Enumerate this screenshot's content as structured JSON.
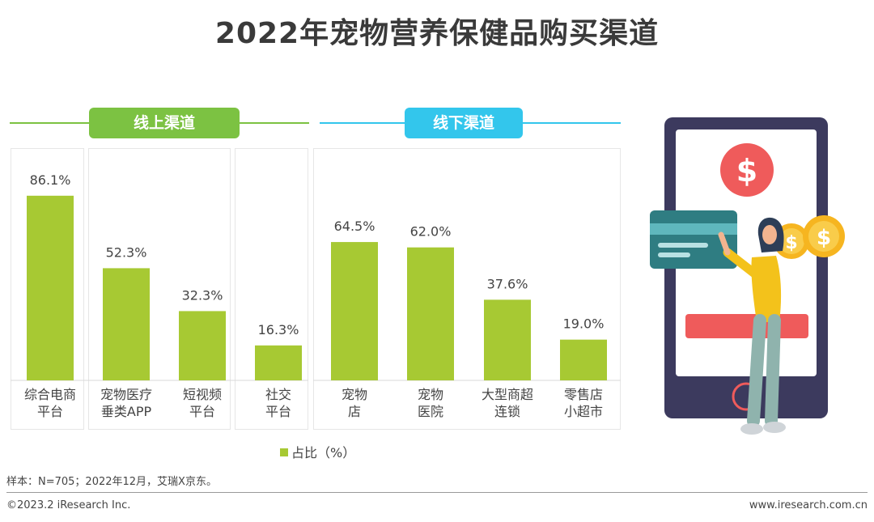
{
  "title": "2022年宠物营养保健品购买渠道",
  "sections": [
    {
      "label": "线上渠道",
      "color": "#7cc242"
    },
    {
      "label": "线下渠道",
      "color": "#33c6ec"
    }
  ],
  "legend": {
    "label": "占比（%）"
  },
  "note": "样本：N=705；2022年12月，艾瑞X京东。",
  "footer": {
    "copyright": "©2023.2 iResearch Inc.",
    "website": "www.iresearch.com.cn"
  },
  "colors": {
    "bar": "#a7c933",
    "online": "#7cc242",
    "offline": "#33c6ec"
  },
  "chart_data": {
    "type": "bar",
    "categories": [
      [
        "综合电商",
        "平台"
      ],
      [
        "宠物医疗",
        "垂类APP"
      ],
      [
        "短视频",
        "平台"
      ],
      [
        "社交",
        "平台"
      ],
      [
        "宠物",
        "店"
      ],
      [
        "宠物",
        "医院"
      ],
      [
        "大型商超",
        "连锁"
      ],
      [
        "零售店",
        "小超市"
      ]
    ],
    "values": [
      86.1,
      52.3,
      32.3,
      16.3,
      64.5,
      62.0,
      37.6,
      19.0
    ],
    "value_labels": [
      "86.1%",
      "52.3%",
      "32.3%",
      "16.3%",
      "64.5%",
      "62.0%",
      "37.6%",
      "19.0%"
    ],
    "groups": [
      "线上渠道",
      "线上渠道",
      "线上渠道",
      "线上渠道",
      "线下渠道",
      "线下渠道",
      "线下渠道",
      "线下渠道"
    ],
    "series_name": "占比（%）",
    "ylim": [
      0,
      100
    ],
    "grid": false,
    "legend_position": "bottom"
  }
}
